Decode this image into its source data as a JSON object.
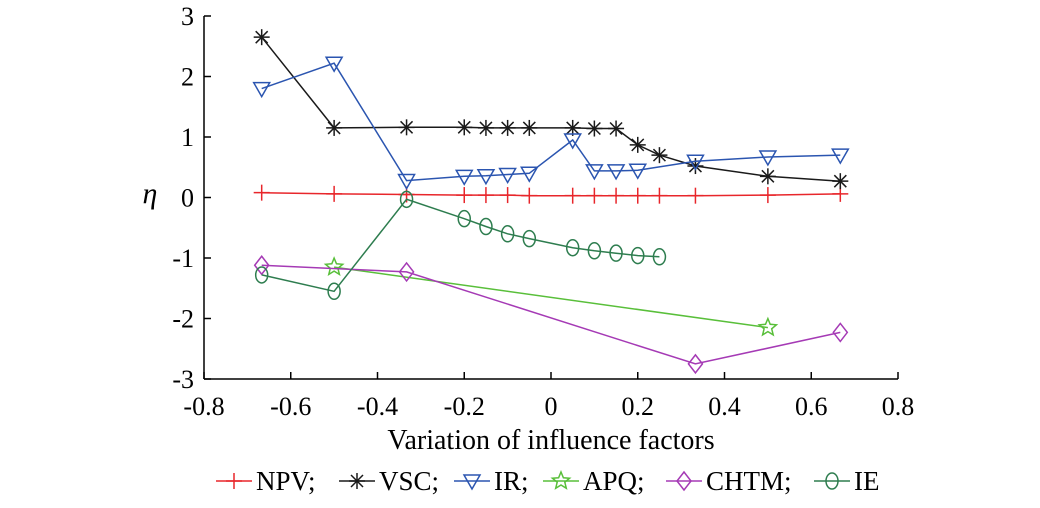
{
  "chart_data": {
    "type": "line",
    "xlabel": "Variation of influence factors",
    "ylabel": "η",
    "xlim": [
      -0.8,
      0.8
    ],
    "ylim": [
      -3,
      3
    ],
    "xticks": [
      "-0.8",
      "-0.6",
      "-0.4",
      "-0.2",
      "0",
      "0.2",
      "0.4",
      "0.6",
      "0.8"
    ],
    "yticks": [
      "3",
      "2",
      "1",
      "0",
      "-1",
      "-2",
      "-3"
    ],
    "legend_position": "bottom",
    "series": [
      {
        "name": "NPV;",
        "color": "#e8262b",
        "marker": "plus",
        "points": [
          [
            -0.667,
            0.08
          ],
          [
            -0.5,
            0.06
          ],
          [
            -0.333,
            0.05
          ],
          [
            -0.2,
            0.04
          ],
          [
            -0.15,
            0.04
          ],
          [
            -0.1,
            0.04
          ],
          [
            -0.05,
            0.03
          ],
          [
            0.05,
            0.03
          ],
          [
            0.1,
            0.03
          ],
          [
            0.15,
            0.03
          ],
          [
            0.2,
            0.03
          ],
          [
            0.25,
            0.03
          ],
          [
            0.333,
            0.03
          ],
          [
            0.5,
            0.04
          ],
          [
            0.667,
            0.06
          ]
        ]
      },
      {
        "name": "VSC;",
        "color": "#1a1a1a",
        "marker": "asterisk",
        "points": [
          [
            -0.667,
            2.65
          ],
          [
            -0.5,
            1.15
          ],
          [
            -0.333,
            1.16
          ],
          [
            -0.2,
            1.16
          ],
          [
            -0.15,
            1.15
          ],
          [
            -0.1,
            1.15
          ],
          [
            -0.05,
            1.15
          ],
          [
            0.05,
            1.15
          ],
          [
            0.1,
            1.14
          ],
          [
            0.15,
            1.14
          ],
          [
            0.2,
            0.87
          ],
          [
            0.25,
            0.7
          ],
          [
            0.333,
            0.52
          ],
          [
            0.5,
            0.35
          ],
          [
            0.667,
            0.27
          ]
        ]
      },
      {
        "name": "IR;",
        "color": "#2b55b0",
        "marker": "triangle-down",
        "points": [
          [
            -0.667,
            1.8
          ],
          [
            -0.5,
            2.22
          ],
          [
            -0.333,
            0.28
          ],
          [
            -0.2,
            0.35
          ],
          [
            -0.15,
            0.36
          ],
          [
            -0.1,
            0.38
          ],
          [
            -0.05,
            0.4
          ],
          [
            0.05,
            0.95
          ],
          [
            0.1,
            0.44
          ],
          [
            0.15,
            0.44
          ],
          [
            0.2,
            0.45
          ],
          [
            0.333,
            0.6
          ],
          [
            0.5,
            0.67
          ],
          [
            0.667,
            0.7
          ]
        ]
      },
      {
        "name": "APQ;",
        "color": "#59bf3a",
        "marker": "star",
        "points": [
          [
            -0.5,
            -1.15
          ],
          [
            0.5,
            -2.15
          ]
        ]
      },
      {
        "name": "CHTM;",
        "color": "#a53ab5",
        "marker": "diamond",
        "points": [
          [
            -0.667,
            -1.12
          ],
          [
            -0.333,
            -1.23
          ],
          [
            0.333,
            -2.75
          ],
          [
            0.667,
            -2.23
          ]
        ]
      },
      {
        "name": "IE",
        "color": "#2e7d4f",
        "marker": "circle",
        "points": [
          [
            -0.667,
            -1.28
          ],
          [
            -0.5,
            -1.55
          ],
          [
            -0.333,
            -0.03
          ],
          [
            -0.2,
            -0.35
          ],
          [
            -0.15,
            -0.48
          ],
          [
            -0.1,
            -0.6
          ],
          [
            -0.05,
            -0.68
          ],
          [
            0.05,
            -0.83
          ],
          [
            0.1,
            -0.88
          ],
          [
            0.15,
            -0.92
          ],
          [
            0.2,
            -0.96
          ],
          [
            0.25,
            -0.98
          ]
        ]
      }
    ]
  }
}
